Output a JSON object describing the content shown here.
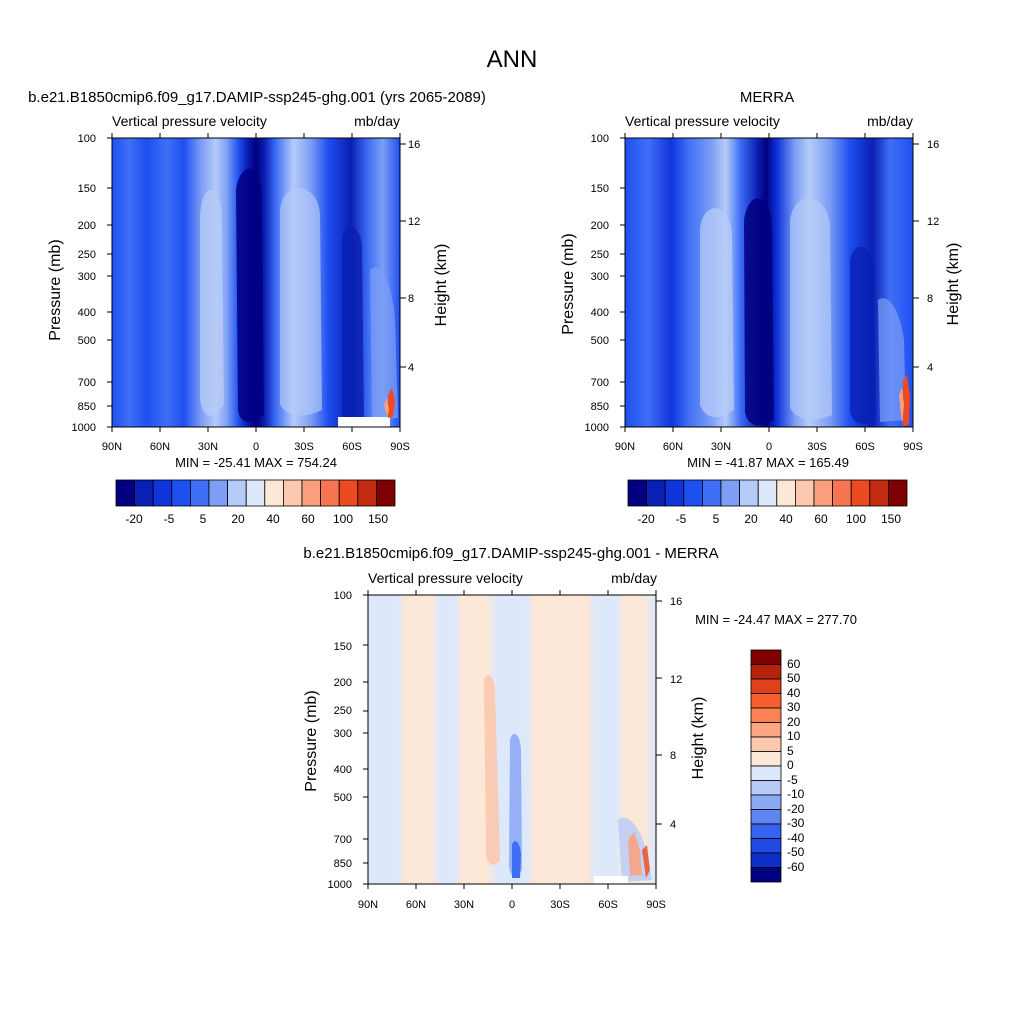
{
  "figure": {
    "title": "ANN"
  },
  "chart_data": [
    {
      "type": "heatmap",
      "title": "b.e21.B1850cmip6.f09_g17.DAMIP-ssp245-ghg.001 (yrs 2065-2089)",
      "subtitle_left": "Vertical pressure velocity",
      "subtitle_right": "mb/day",
      "xlabel": "",
      "ylabel": "Pressure (mb)",
      "ylabel_right": "Height (km)",
      "x_ticks": [
        "90N",
        "60N",
        "30N",
        "0",
        "30S",
        "60S",
        "90S"
      ],
      "y_ticks": [
        100,
        150,
        200,
        250,
        300,
        400,
        500,
        700,
        850,
        1000
      ],
      "y_right_ticks": [
        16,
        12,
        8,
        4
      ],
      "ylim": [
        1000,
        100
      ],
      "y_scale": "log",
      "stats": "MIN = -25.41  MAX = 754.24",
      "colorbar": {
        "orientation": "horizontal",
        "labels": [
          "-20",
          "-5",
          "5",
          "20",
          "40",
          "60",
          "100",
          "150"
        ]
      },
      "colors": [
        "#000080",
        "#0a1fb3",
        "#0f35db",
        "#1e4ff0",
        "#3f6ff5",
        "#7c9ef5",
        "#b6cbf8",
        "#dde8fb",
        "#fde8d8",
        "#fcc8ae",
        "#fba07e",
        "#f77550",
        "#ec4a22",
        "#c42a10",
        "#7f0000"
      ]
    },
    {
      "type": "heatmap",
      "title": "MERRA",
      "subtitle_left": "Vertical pressure velocity",
      "subtitle_right": "mb/day",
      "xlabel": "",
      "ylabel": "Pressure (mb)",
      "ylabel_right": "Height (km)",
      "x_ticks": [
        "90N",
        "60N",
        "30N",
        "0",
        "30S",
        "60S",
        "90S"
      ],
      "y_ticks": [
        100,
        150,
        200,
        250,
        300,
        400,
        500,
        700,
        850,
        1000
      ],
      "y_right_ticks": [
        16,
        12,
        8,
        4
      ],
      "ylim": [
        1000,
        100
      ],
      "y_scale": "log",
      "stats": "MIN = -41.87  MAX = 165.49",
      "colorbar": {
        "orientation": "horizontal",
        "labels": [
          "-20",
          "-5",
          "5",
          "20",
          "40",
          "60",
          "100",
          "150"
        ]
      }
    },
    {
      "type": "heatmap",
      "title": "b.e21.B1850cmip6.f09_g17.DAMIP-ssp245-ghg.001 - MERRA",
      "subtitle_left": "Vertical pressure velocity",
      "subtitle_right": "mb/day",
      "xlabel": "",
      "ylabel": "Pressure (mb)",
      "ylabel_right": "Height (km)",
      "x_ticks": [
        "90N",
        "60N",
        "30N",
        "0",
        "30S",
        "60S",
        "90S"
      ],
      "y_ticks": [
        100,
        150,
        200,
        250,
        300,
        400,
        500,
        700,
        850,
        1000
      ],
      "y_right_ticks": [
        16,
        12,
        8,
        4
      ],
      "ylim": [
        1000,
        100
      ],
      "y_scale": "log",
      "stats": "MIN = -24.47  MAX = 277.70",
      "colorbar": {
        "orientation": "vertical",
        "labels": [
          "60",
          "50",
          "40",
          "30",
          "20",
          "10",
          "5",
          "0",
          "-5",
          "-10",
          "-20",
          "-30",
          "-40",
          "-50",
          "-60"
        ]
      },
      "colors": [
        "#7f0000",
        "#b5230c",
        "#e0401a",
        "#f6602f",
        "#fa8256",
        "#fca682",
        "#fdc9ae",
        "#fde8d8",
        "#dde8fb",
        "#b6cbf8",
        "#8aaaf6",
        "#5d86f3",
        "#3563ef",
        "#1f4ae4",
        "#0e2ec9",
        "#000080"
      ]
    }
  ]
}
